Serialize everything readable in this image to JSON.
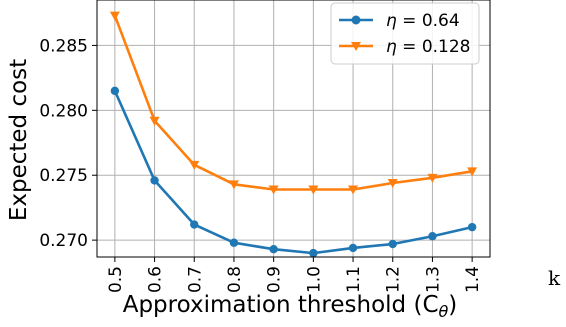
{
  "chart_data": {
    "type": "line",
    "xlabel_main": "Approximation threshold (C",
    "xlabel_sub": "θ",
    "xlabel_tail": ")",
    "ylabel": "Expected cost",
    "x": [
      0.5,
      0.6,
      0.7,
      0.8,
      0.9,
      1.0,
      1.1,
      1.2,
      1.3,
      1.4
    ],
    "xtick_labels": [
      "0.5",
      "0.6",
      "0.7",
      "0.8",
      "0.9",
      "1.0",
      "1.1",
      "1.2",
      "1.3",
      "1.4"
    ],
    "yticks": [
      0.27,
      0.275,
      0.28,
      0.285
    ],
    "ytick_labels": [
      "0.270",
      "0.275",
      "0.280",
      "0.285"
    ],
    "xlim": [
      0.455,
      1.445
    ],
    "ylim": [
      0.2687,
      0.2885
    ],
    "grid": true,
    "legend_position": "top-right",
    "series": [
      {
        "name": "η = 0.64",
        "legend_symbol": "η",
        "legend_value": " = 0.64",
        "color": "#1f77b4",
        "marker": "circle",
        "values": [
          0.2815,
          0.2746,
          0.2712,
          0.2698,
          0.2693,
          0.269,
          0.2694,
          0.2697,
          0.2703,
          0.271
        ]
      },
      {
        "name": "η = 0.128",
        "legend_symbol": "η",
        "legend_value": " = 0.128",
        "color": "#ff7f0e",
        "marker": "triangle-down",
        "values": [
          0.2873,
          0.2792,
          0.2758,
          0.2743,
          0.2739,
          0.2739,
          0.2739,
          0.2744,
          0.2748,
          0.2753
        ]
      }
    ]
  },
  "stray_text": "k"
}
